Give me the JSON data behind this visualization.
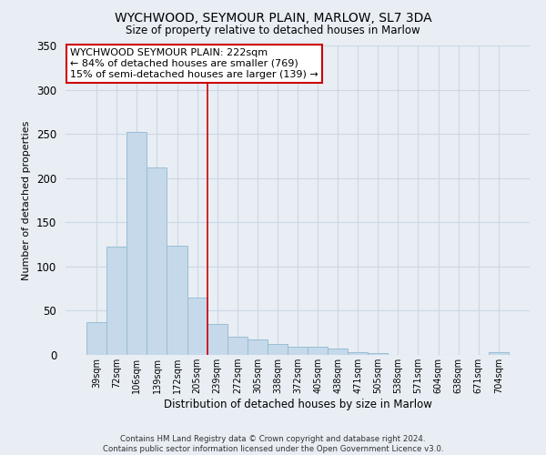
{
  "title": "WYCHWOOD, SEYMOUR PLAIN, MARLOW, SL7 3DA",
  "subtitle": "Size of property relative to detached houses in Marlow",
  "xlabel": "Distribution of detached houses by size in Marlow",
  "ylabel": "Number of detached properties",
  "bar_color": "#c5d9ea",
  "bar_edge_color": "#9abdd4",
  "bg_color": "#e8eef4",
  "grid_color": "#ccd8e4",
  "categories": [
    "39sqm",
    "72sqm",
    "106sqm",
    "139sqm",
    "172sqm",
    "205sqm",
    "239sqm",
    "272sqm",
    "305sqm",
    "338sqm",
    "372sqm",
    "405sqm",
    "438sqm",
    "471sqm",
    "505sqm",
    "538sqm",
    "571sqm",
    "604sqm",
    "638sqm",
    "671sqm",
    "704sqm"
  ],
  "values": [
    37,
    123,
    252,
    212,
    124,
    65,
    35,
    21,
    17,
    12,
    9,
    9,
    7,
    3,
    2,
    0,
    0,
    0,
    0,
    0,
    3
  ],
  "ylim": [
    0,
    350
  ],
  "yticks": [
    0,
    50,
    100,
    150,
    200,
    250,
    300,
    350
  ],
  "vline_x": 5.5,
  "vline_color": "#cc0000",
  "annotation_title": "WYCHWOOD SEYMOUR PLAIN: 222sqm",
  "annotation_line1": "← 84% of detached houses are smaller (769)",
  "annotation_line2": "15% of semi-detached houses are larger (139) →",
  "annotation_box_color": "#ffffff",
  "annotation_box_edge": "#cc0000",
  "footer1": "Contains HM Land Registry data © Crown copyright and database right 2024.",
  "footer2": "Contains public sector information licensed under the Open Government Licence v3.0."
}
